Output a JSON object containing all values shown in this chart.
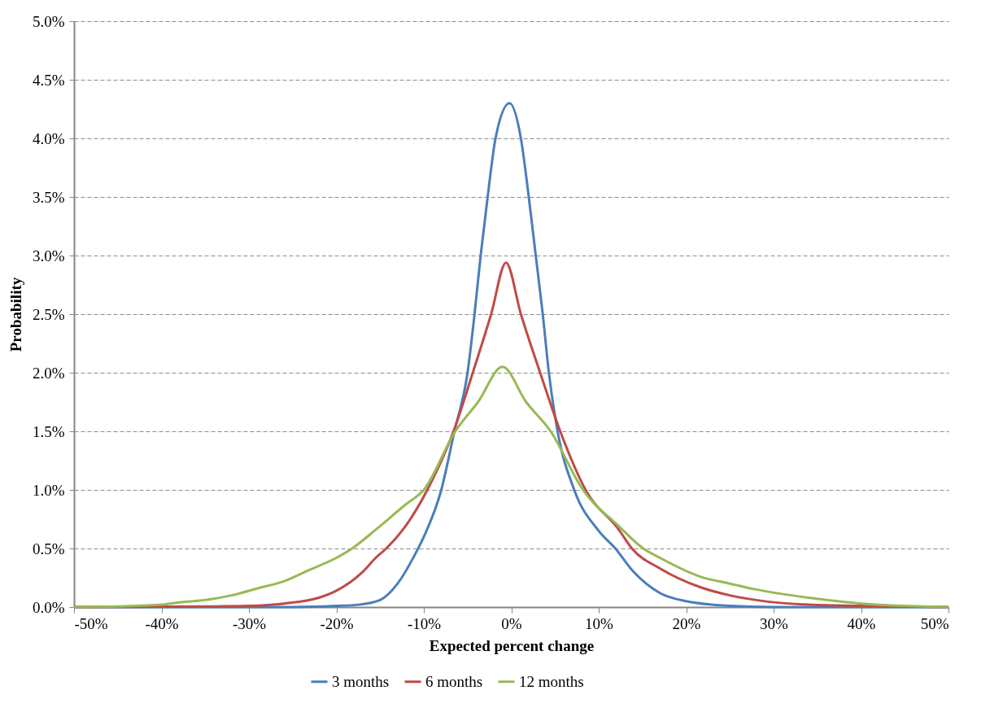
{
  "chart_data": {
    "type": "line",
    "xlabel": "Expected percent change",
    "ylabel": "Probability",
    "xlim": [
      -50,
      50
    ],
    "ylim": [
      0,
      5
    ],
    "xticks": [
      {
        "value": -50,
        "label": "-50%"
      },
      {
        "value": -40,
        "label": "-40%"
      },
      {
        "value": -30,
        "label": "-30%"
      },
      {
        "value": -20,
        "label": "-20%"
      },
      {
        "value": -10,
        "label": "-10%"
      },
      {
        "value": 0,
        "label": "0%"
      },
      {
        "value": 10,
        "label": "10%"
      },
      {
        "value": 20,
        "label": "20%"
      },
      {
        "value": 30,
        "label": "30%"
      },
      {
        "value": 40,
        "label": "40%"
      },
      {
        "value": 50,
        "label": "50%"
      }
    ],
    "yticks": [
      {
        "value": 0,
        "label": "0.0%"
      },
      {
        "value": 0.5,
        "label": "0.5%"
      },
      {
        "value": 1,
        "label": "1.0%"
      },
      {
        "value": 1.5,
        "label": "1.5%"
      },
      {
        "value": 2,
        "label": "2.0%"
      },
      {
        "value": 2.5,
        "label": "2.5%"
      },
      {
        "value": 3,
        "label": "3.0%"
      },
      {
        "value": 3.5,
        "label": "3.5%"
      },
      {
        "value": 4,
        "label": "4.0%"
      },
      {
        "value": 4.5,
        "label": "4.5%"
      },
      {
        "value": 5,
        "label": "5.0%"
      }
    ],
    "grid": "y",
    "legend": "bottom",
    "marker": "none",
    "line_style": "solid",
    "series": [
      {
        "name": "3 months",
        "color": "#4a7ebb",
        "x": [
          -50,
          -30,
          -25,
          -20,
          -17.5,
          -15,
          -13,
          -11,
          -10,
          -8,
          -6.5,
          -5,
          -4.2,
          -3.5,
          -2.7,
          -1.8,
          -0.2,
          1.1,
          2,
          2.8,
          3.6,
          4.3,
          5.3,
          7.2,
          10,
          11.9,
          14,
          17,
          20,
          25,
          30,
          50
        ],
        "values": [
          0,
          0,
          0,
          0.01,
          0.02,
          0.06,
          0.2,
          0.45,
          0.6,
          1,
          1.5,
          2,
          2.5,
          3,
          3.5,
          4,
          4.3,
          4,
          3.5,
          3,
          2.5,
          2,
          1.5,
          1,
          0.65,
          0.5,
          0.3,
          0.12,
          0.05,
          0.01,
          0,
          0
        ]
      },
      {
        "name": "6 months",
        "color": "#be4b48",
        "x": [
          -50,
          -35,
          -30,
          -26,
          -22,
          -20,
          -17,
          -15.5,
          -14.3,
          -12,
          -9.6,
          -6.6,
          -4.4,
          -2.3,
          -0.6,
          1.1,
          3.3,
          5.6,
          8.5,
          12.3,
          13.8,
          17,
          21.6,
          25,
          28,
          34,
          40,
          50
        ],
        "values": [
          0,
          0.005,
          0.01,
          0.03,
          0.08,
          0.14,
          0.3,
          0.42,
          0.5,
          0.7,
          1,
          1.5,
          2,
          2.5,
          2.94,
          2.5,
          2,
          1.5,
          1,
          0.66,
          0.5,
          0.33,
          0.17,
          0.1,
          0.06,
          0.02,
          0.01,
          0
        ]
      },
      {
        "name": "12 months",
        "color": "#98b954",
        "x": [
          -50,
          -45,
          -40,
          -38,
          -35,
          -32,
          -29,
          -26,
          -23,
          -20,
          -18.2,
          -15.5,
          -12,
          -10,
          -6.4,
          -3.8,
          -1,
          1.7,
          4.5,
          8.2,
          12.3,
          15.1,
          17,
          21.6,
          25,
          28,
          34,
          40,
          45,
          50
        ],
        "values": [
          0,
          0.005,
          0.02,
          0.04,
          0.06,
          0.1,
          0.16,
          0.22,
          0.32,
          0.42,
          0.5,
          0.66,
          0.88,
          1,
          1.5,
          1.75,
          2.05,
          1.75,
          1.5,
          1,
          0.69,
          0.5,
          0.42,
          0.26,
          0.2,
          0.15,
          0.08,
          0.03,
          0.01,
          0
        ]
      }
    ]
  }
}
